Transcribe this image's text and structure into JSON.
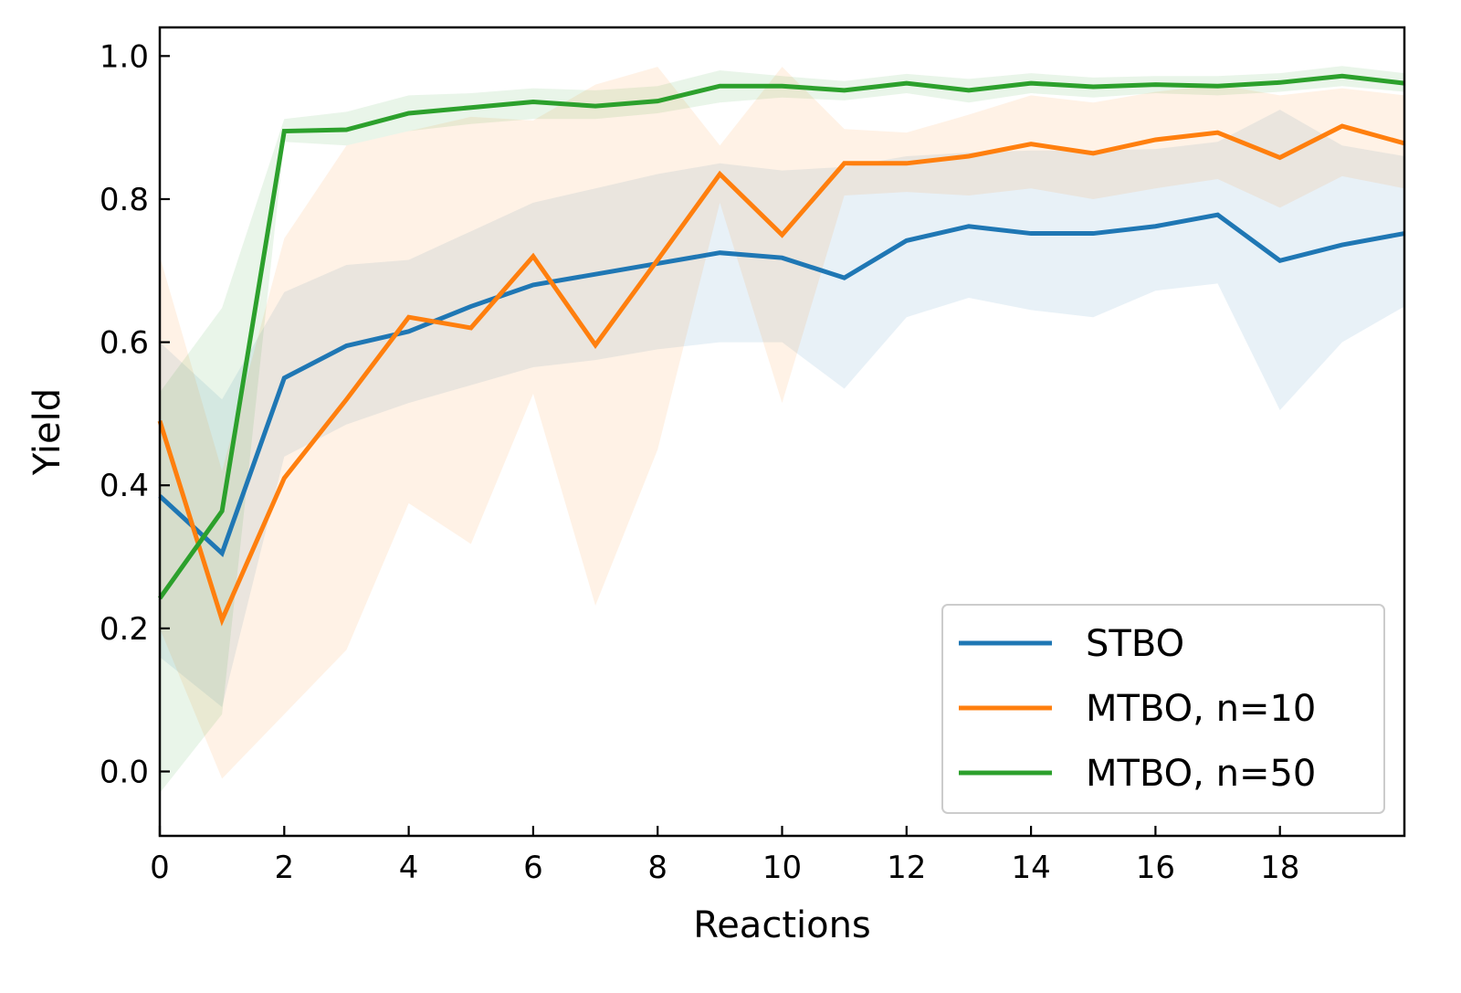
{
  "chart_data": {
    "type": "line",
    "title": "",
    "xlabel": "Reactions",
    "ylabel": "Yield",
    "xlim": [
      0,
      20
    ],
    "ylim": [
      -0.09,
      1.04
    ],
    "xticks": [
      0,
      2,
      4,
      6,
      8,
      10,
      12,
      14,
      16,
      18
    ],
    "yticks": [
      0.0,
      0.2,
      0.4,
      0.6,
      0.8,
      1.0
    ],
    "grid": false,
    "legend_position": "lower-right",
    "x": [
      0,
      1,
      2,
      3,
      4,
      5,
      6,
      7,
      8,
      9,
      10,
      11,
      12,
      13,
      14,
      15,
      16,
      17,
      18,
      19,
      20
    ],
    "series": [
      {
        "name": "STBO",
        "color": "#1f77b4",
        "values": [
          0.385,
          0.305,
          0.55,
          0.595,
          0.615,
          0.65,
          0.68,
          0.695,
          0.71,
          0.725,
          0.718,
          0.69,
          0.742,
          0.762,
          0.752,
          0.752,
          0.762,
          0.778,
          0.714,
          0.736,
          0.752
        ],
        "lower": [
          0.16,
          0.09,
          0.44,
          0.485,
          0.515,
          0.54,
          0.565,
          0.575,
          0.59,
          0.6,
          0.6,
          0.535,
          0.635,
          0.662,
          0.645,
          0.635,
          0.672,
          0.682,
          0.505,
          0.6,
          0.65
        ],
        "upper": [
          0.6,
          0.52,
          0.67,
          0.708,
          0.715,
          0.755,
          0.795,
          0.815,
          0.835,
          0.85,
          0.84,
          0.845,
          0.86,
          0.865,
          0.868,
          0.868,
          0.87,
          0.88,
          0.925,
          0.875,
          0.86
        ]
      },
      {
        "name": "MTBO, n=10",
        "color": "#ff7f0e",
        "values": [
          0.49,
          0.212,
          0.41,
          0.52,
          0.635,
          0.62,
          0.72,
          0.596,
          0.715,
          0.835,
          0.75,
          0.85,
          0.85,
          0.86,
          0.877,
          0.864,
          0.883,
          0.893,
          0.858,
          0.902,
          0.878
        ],
        "lower": [
          0.2,
          -0.01,
          0.08,
          0.17,
          0.375,
          0.318,
          0.528,
          0.232,
          0.45,
          0.795,
          0.515,
          0.805,
          0.81,
          0.805,
          0.815,
          0.8,
          0.815,
          0.828,
          0.788,
          0.832,
          0.815
        ],
        "upper": [
          0.72,
          0.42,
          0.745,
          0.875,
          0.895,
          0.915,
          0.91,
          0.96,
          0.985,
          0.875,
          0.985,
          0.898,
          0.893,
          0.918,
          0.945,
          0.935,
          0.95,
          0.96,
          0.945,
          0.955,
          0.945
        ]
      },
      {
        "name": "MTBO, n=50",
        "color": "#2ca02c",
        "values": [
          0.242,
          0.364,
          0.895,
          0.897,
          0.92,
          0.928,
          0.936,
          0.93,
          0.937,
          0.958,
          0.958,
          0.952,
          0.962,
          0.952,
          0.962,
          0.957,
          0.96,
          0.958,
          0.963,
          0.972,
          0.962
        ],
        "lower": [
          -0.03,
          0.08,
          0.88,
          0.875,
          0.895,
          0.905,
          0.912,
          0.912,
          0.92,
          0.935,
          0.942,
          0.938,
          0.948,
          0.935,
          0.948,
          0.942,
          0.948,
          0.945,
          0.95,
          0.958,
          0.95
        ],
        "upper": [
          0.53,
          0.648,
          0.912,
          0.922,
          0.945,
          0.948,
          0.955,
          0.952,
          0.958,
          0.98,
          0.972,
          0.965,
          0.975,
          0.968,
          0.976,
          0.97,
          0.972,
          0.972,
          0.976,
          0.986,
          0.976
        ]
      }
    ]
  }
}
